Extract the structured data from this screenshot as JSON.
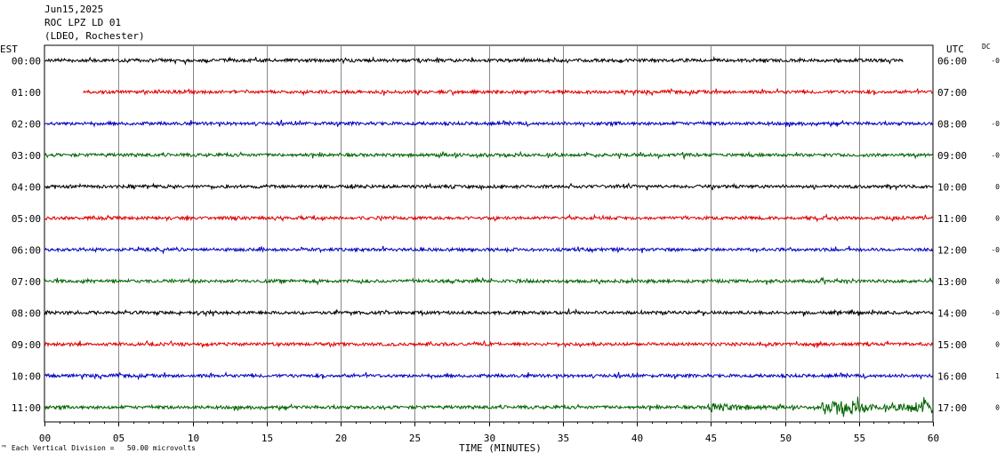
{
  "header": {
    "date": "Jun15,2025",
    "station": "ROC LPZ LD 01",
    "network": "(LDEO, Rochester)"
  },
  "left_timezone": "EST",
  "right_timezone": "UTC",
  "dc_label": "DC",
  "footnote": {
    "mark": "™",
    "text": "Each Vertical Division =   50.00 microvolts"
  },
  "chart_data": {
    "type": "line",
    "title": "",
    "xlabel": "TIME (MINUTES)",
    "ylabel": "",
    "xlim": [
      0,
      60
    ],
    "x_ticks": [
      "00",
      "05",
      "10",
      "15",
      "20",
      "25",
      "30",
      "35",
      "40",
      "45",
      "50",
      "55",
      "60"
    ],
    "grid": true,
    "colors": [
      "#000000",
      "#e00000",
      "#0000c0",
      "#006400"
    ],
    "rows": [
      {
        "left": "00:00",
        "right": "06:00",
        "dc": "-0",
        "color": "#000000",
        "start_min": 0,
        "end_min": 58
      },
      {
        "left": "01:00",
        "right": "07:00",
        "dc": "",
        "color": "#e00000",
        "start_min": 2.6,
        "end_min": 60
      },
      {
        "left": "02:00",
        "right": "08:00",
        "dc": "-0",
        "color": "#0000c0",
        "start_min": 0,
        "end_min": 60
      },
      {
        "left": "03:00",
        "right": "09:00",
        "dc": "-0",
        "color": "#006400",
        "start_min": 0,
        "end_min": 60
      },
      {
        "left": "04:00",
        "right": "10:00",
        "dc": "0",
        "color": "#000000",
        "start_min": 0,
        "end_min": 60
      },
      {
        "left": "05:00",
        "right": "11:00",
        "dc": "0",
        "color": "#e00000",
        "start_min": 0,
        "end_min": 60
      },
      {
        "left": "06:00",
        "right": "12:00",
        "dc": "-0",
        "color": "#0000c0",
        "start_min": 0,
        "end_min": 60
      },
      {
        "left": "07:00",
        "right": "13:00",
        "dc": "0",
        "color": "#006400",
        "start_min": 0,
        "end_min": 60
      },
      {
        "left": "08:00",
        "right": "14:00",
        "dc": "-0",
        "color": "#000000",
        "start_min": 0,
        "end_min": 60
      },
      {
        "left": "09:00",
        "right": "15:00",
        "dc": "0",
        "color": "#e00000",
        "start_min": 0,
        "end_min": 60
      },
      {
        "left": "10:00",
        "right": "16:00",
        "dc": "1",
        "color": "#0000c0",
        "start_min": 0,
        "end_min": 60
      },
      {
        "left": "11:00",
        "right": "17:00",
        "dc": "0",
        "color": "#006400",
        "start_min": 0,
        "end_min": 60
      }
    ]
  }
}
